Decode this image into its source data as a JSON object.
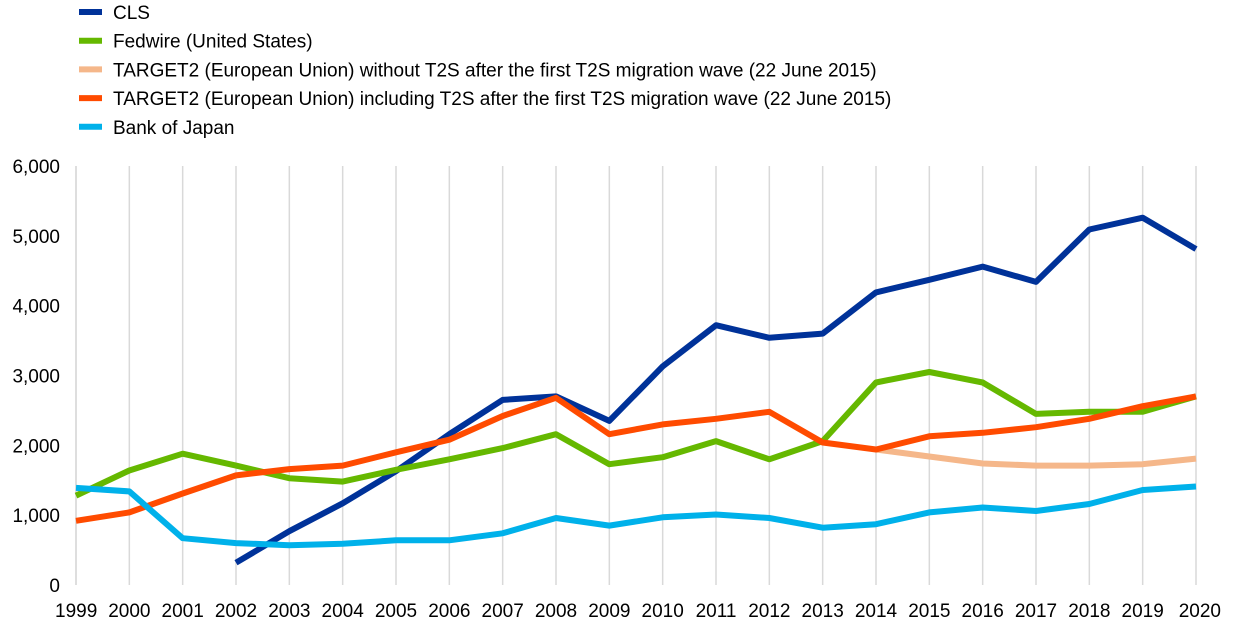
{
  "chart_data": {
    "type": "line",
    "categories": [
      "1999",
      "2000",
      "2001",
      "2002",
      "2003",
      "2004",
      "2005",
      "2006",
      "2007",
      "2008",
      "2009",
      "2010",
      "2011",
      "2012",
      "2013",
      "2014",
      "2015",
      "2016",
      "2017",
      "2018",
      "2019",
      "2020"
    ],
    "ylim": [
      0,
      6000
    ],
    "yticks": [
      0,
      1000,
      2000,
      3000,
      4000,
      5000,
      6000
    ],
    "ytick_labels": [
      "0",
      "1,000",
      "2,000",
      "3,000",
      "4,000",
      "5,000",
      "6,000"
    ],
    "grid": "vertical",
    "legend_position": "top-left",
    "series": [
      {
        "name": "CLS",
        "color": "#003299",
        "values": [
          null,
          null,
          null,
          320,
          770,
          1170,
          1630,
          2160,
          2650,
          2700,
          2350,
          3130,
          3720,
          3540,
          3600,
          4190,
          4370,
          4560,
          4340,
          5090,
          5260,
          4810
        ]
      },
      {
        "name": "Fedwire (United States)",
        "color": "#65B800",
        "values": [
          1280,
          1640,
          1880,
          1710,
          1530,
          1480,
          1650,
          1800,
          1960,
          2160,
          1730,
          1830,
          2060,
          1800,
          2060,
          2900,
          3050,
          2900,
          2450,
          2480,
          2480,
          2700
        ]
      },
      {
        "name": "TARGET2  (European Union) without T2S after the first T2S migration wave (22 June 2015)",
        "color": "#F5B78A",
        "values": [
          null,
          null,
          null,
          null,
          null,
          null,
          null,
          null,
          null,
          null,
          null,
          null,
          null,
          null,
          null,
          1940,
          1840,
          1740,
          1710,
          1710,
          1730,
          1810
        ]
      },
      {
        "name": "TARGET2  (European Union) including T2S after the first T2S migration wave (22 June 2015)",
        "color": "#FF4B00",
        "values": [
          920,
          1040,
          1310,
          1570,
          1660,
          1710,
          1900,
          2080,
          2420,
          2680,
          2160,
          2300,
          2380,
          2480,
          2040,
          1940,
          2130,
          2180,
          2260,
          2380,
          2560,
          2700
        ]
      },
      {
        "name": "Bank of Japan",
        "color": "#00B1EA",
        "values": [
          1390,
          1340,
          670,
          600,
          570,
          590,
          640,
          640,
          740,
          960,
          850,
          970,
          1010,
          960,
          820,
          870,
          1040,
          1110,
          1060,
          1160,
          1360,
          1410
        ]
      }
    ]
  }
}
